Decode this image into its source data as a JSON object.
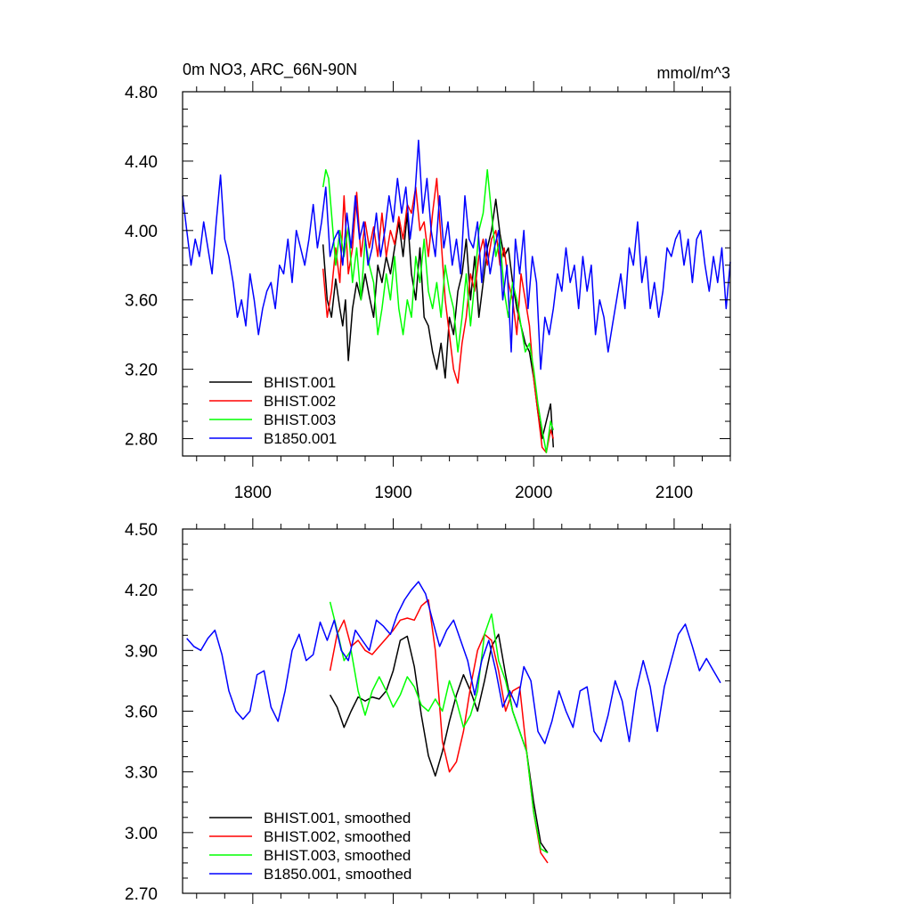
{
  "chart_data": [
    {
      "type": "line",
      "title_left": "0m NO3, ARC_66N-90N",
      "title_right": "mmol/m^3",
      "xlim": [
        1750,
        2140
      ],
      "ylim": [
        2.7,
        4.8
      ],
      "xticks": [
        1800,
        1900,
        2000,
        2100
      ],
      "xtick_labels": [
        "1800",
        "1900",
        "2000",
        "2100"
      ],
      "yticks": [
        2.8,
        3.2,
        3.6,
        4.0,
        4.4,
        4.8
      ],
      "ytick_labels": [
        "2.80",
        "3.20",
        "3.60",
        "4.00",
        "4.40",
        "4.80"
      ],
      "series": [
        {
          "name": "BHIST.001",
          "color": "#000000",
          "x": [
            1850,
            1853,
            1856,
            1859,
            1862,
            1864,
            1866,
            1868,
            1871,
            1874,
            1877,
            1880,
            1883,
            1886,
            1889,
            1892,
            1895,
            1898,
            1901,
            1904,
            1907,
            1910,
            1913,
            1916,
            1919,
            1922,
            1925,
            1928,
            1931,
            1934,
            1937,
            1940,
            1943,
            1946,
            1949,
            1952,
            1955,
            1958,
            1961,
            1964,
            1967,
            1970,
            1973,
            1976,
            1979,
            1982,
            1985,
            1988,
            1991,
            1994,
            1997,
            2000,
            2003,
            2006,
            2009,
            2012,
            2014
          ],
          "y": [
            3.92,
            3.6,
            3.5,
            3.72,
            3.55,
            3.45,
            3.6,
            3.25,
            3.55,
            3.7,
            3.6,
            3.75,
            3.62,
            3.5,
            3.8,
            3.7,
            3.85,
            3.75,
            3.9,
            4.05,
            3.85,
            4.1,
            3.75,
            3.6,
            3.9,
            3.5,
            3.45,
            3.3,
            3.2,
            3.35,
            3.15,
            3.5,
            3.4,
            3.65,
            3.75,
            3.95,
            3.6,
            3.85,
            3.5,
            3.7,
            3.9,
            4.0,
            4.18,
            3.98,
            3.85,
            3.9,
            3.7,
            3.55,
            3.45,
            3.35,
            3.3,
            3.15,
            2.95,
            2.8,
            2.9,
            3.0,
            2.75
          ]
        },
        {
          "name": "BHIST.002",
          "color": "#ff0000",
          "x": [
            1850,
            1853,
            1856,
            1859,
            1862,
            1865,
            1868,
            1871,
            1874,
            1877,
            1880,
            1883,
            1886,
            1889,
            1892,
            1895,
            1898,
            1901,
            1904,
            1907,
            1910,
            1913,
            1916,
            1919,
            1922,
            1925,
            1928,
            1931,
            1934,
            1937,
            1940,
            1943,
            1946,
            1949,
            1952,
            1955,
            1958,
            1961,
            1964,
            1967,
            1970,
            1973,
            1976,
            1979,
            1982,
            1985,
            1988,
            1991,
            1994,
            1997,
            2000,
            2003,
            2006,
            2009,
            2012,
            2014
          ],
          "y": [
            3.78,
            3.5,
            3.65,
            3.9,
            3.7,
            4.2,
            3.75,
            3.9,
            4.22,
            3.85,
            4.05,
            3.9,
            4.02,
            3.85,
            4.1,
            3.85,
            4.0,
            3.92,
            4.08,
            3.95,
            4.15,
            4.1,
            4.25,
            4.0,
            4.05,
            3.85,
            4.1,
            4.3,
            3.95,
            3.6,
            3.4,
            3.2,
            3.12,
            3.35,
            3.5,
            3.75,
            3.65,
            3.85,
            3.95,
            3.8,
            3.95,
            4.0,
            3.8,
            3.9,
            3.7,
            3.6,
            3.4,
            3.75,
            3.6,
            3.45,
            3.15,
            2.95,
            2.75,
            2.72,
            2.85,
            2.8
          ]
        },
        {
          "name": "BHIST.003",
          "color": "#00ff00",
          "x": [
            1850,
            1852,
            1854,
            1856,
            1859,
            1862,
            1865,
            1868,
            1871,
            1874,
            1877,
            1880,
            1883,
            1886,
            1889,
            1892,
            1895,
            1898,
            1901,
            1904,
            1907,
            1910,
            1913,
            1916,
            1919,
            1922,
            1925,
            1928,
            1931,
            1934,
            1937,
            1940,
            1943,
            1946,
            1949,
            1952,
            1955,
            1958,
            1961,
            1964,
            1967,
            1970,
            1973,
            1976,
            1979,
            1982,
            1985,
            1988,
            1991,
            1994,
            1997,
            2000,
            2003,
            2006,
            2009,
            2012,
            2014
          ],
          "y": [
            4.25,
            4.35,
            4.3,
            4.1,
            3.8,
            4.0,
            3.85,
            4.02,
            3.7,
            3.9,
            3.6,
            3.95,
            3.8,
            3.7,
            3.4,
            3.55,
            3.75,
            3.6,
            3.85,
            3.55,
            3.4,
            3.6,
            3.5,
            3.85,
            3.7,
            3.95,
            3.65,
            3.55,
            3.7,
            3.5,
            3.8,
            3.65,
            3.55,
            3.3,
            3.5,
            3.75,
            3.45,
            3.7,
            4.0,
            4.1,
            4.35,
            4.1,
            3.85,
            3.95,
            3.65,
            3.5,
            3.7,
            3.6,
            3.45,
            3.3,
            3.35,
            3.2,
            3.0,
            2.85,
            2.72,
            2.9,
            2.85
          ]
        },
        {
          "name": "B1850.001",
          "color": "#0000ff",
          "x": [
            1750,
            1753,
            1756,
            1759,
            1762,
            1765,
            1768,
            1771,
            1774,
            1777,
            1780,
            1783,
            1786,
            1789,
            1792,
            1795,
            1798,
            1801,
            1804,
            1807,
            1810,
            1813,
            1816,
            1819,
            1822,
            1825,
            1828,
            1831,
            1834,
            1837,
            1840,
            1843,
            1846,
            1849,
            1852,
            1855,
            1858,
            1861,
            1864,
            1867,
            1870,
            1873,
            1876,
            1879,
            1882,
            1885,
            1888,
            1891,
            1894,
            1897,
            1900,
            1903,
            1906,
            1909,
            1912,
            1915,
            1918,
            1921,
            1924,
            1927,
            1930,
            1933,
            1936,
            1939,
            1942,
            1945,
            1948,
            1951,
            1954,
            1957,
            1960,
            1963,
            1966,
            1969,
            1972,
            1975,
            1978,
            1981,
            1984,
            1987,
            1990,
            1993,
            1996,
            1999,
            2002,
            2005,
            2008,
            2011,
            2014,
            2017,
            2020,
            2023,
            2026,
            2029,
            2032,
            2035,
            2038,
            2041,
            2044,
            2047,
            2050,
            2053,
            2056,
            2059,
            2062,
            2065,
            2068,
            2071,
            2074,
            2077,
            2080,
            2083,
            2086,
            2089,
            2092,
            2095,
            2098,
            2101,
            2104,
            2107,
            2110,
            2113,
            2116,
            2119,
            2122,
            2125,
            2128,
            2131,
            2134,
            2137,
            2140
          ],
          "y": [
            4.2,
            4.0,
            3.8,
            3.95,
            3.85,
            4.05,
            3.9,
            3.75,
            4.05,
            4.32,
            3.95,
            3.85,
            3.7,
            3.5,
            3.6,
            3.45,
            3.75,
            3.6,
            3.4,
            3.55,
            3.65,
            3.7,
            3.55,
            3.8,
            3.75,
            3.95,
            3.7,
            4.0,
            3.9,
            3.8,
            3.95,
            4.15,
            3.9,
            4.05,
            4.25,
            3.85,
            3.95,
            4.0,
            3.8,
            4.1,
            3.9,
            4.2,
            3.95,
            4.05,
            3.8,
            3.9,
            4.1,
            3.85,
            4.0,
            4.2,
            4.05,
            4.3,
            4.1,
            4.25,
            3.95,
            4.15,
            4.52,
            4.1,
            4.3,
            4.0,
            3.85,
            4.2,
            3.9,
            4.05,
            3.8,
            3.95,
            3.75,
            4.2,
            3.95,
            3.9,
            4.05,
            3.7,
            3.95,
            3.75,
            3.9,
            4.0,
            3.6,
            3.8,
            3.3,
            3.95,
            3.75,
            4.0,
            3.55,
            3.85,
            3.7,
            3.2,
            3.5,
            3.4,
            3.55,
            3.75,
            3.65,
            3.9,
            3.7,
            3.8,
            3.55,
            3.85,
            3.65,
            3.8,
            3.4,
            3.6,
            3.5,
            3.3,
            3.45,
            3.6,
            3.75,
            3.55,
            3.9,
            3.8,
            4.05,
            3.7,
            3.85,
            3.55,
            3.7,
            3.5,
            3.65,
            3.9,
            3.85,
            3.95,
            4.0,
            3.8,
            3.95,
            3.7,
            3.95,
            4.0,
            3.8,
            3.65,
            3.85,
            3.7,
            3.9,
            3.55,
            3.82
          ]
        }
      ],
      "legend": {
        "position": "lower-left",
        "entries": [
          "BHIST.001",
          "BHIST.002",
          "BHIST.003",
          "B1850.001"
        ]
      }
    },
    {
      "type": "line",
      "xlim": [
        1750,
        2140
      ],
      "ylim": [
        2.7,
        4.5
      ],
      "xticks": [
        1800,
        1900,
        2000,
        2100
      ],
      "yticks": [
        2.7,
        3.0,
        3.3,
        3.6,
        3.9,
        4.2,
        4.5
      ],
      "ytick_labels": [
        "2.70",
        "3.00",
        "3.30",
        "3.60",
        "3.90",
        "4.20",
        "4.50"
      ],
      "series": [
        {
          "name": "BHIST.001, smoothed",
          "color": "#000000",
          "x": [
            1855,
            1860,
            1865,
            1870,
            1875,
            1880,
            1885,
            1890,
            1895,
            1900,
            1905,
            1910,
            1915,
            1920,
            1925,
            1930,
            1935,
            1940,
            1945,
            1950,
            1955,
            1960,
            1965,
            1970,
            1975,
            1980,
            1985,
            1990,
            1995,
            2000,
            2005,
            2010
          ],
          "y": [
            3.68,
            3.62,
            3.52,
            3.6,
            3.67,
            3.65,
            3.67,
            3.66,
            3.7,
            3.8,
            3.95,
            3.97,
            3.82,
            3.58,
            3.38,
            3.28,
            3.4,
            3.55,
            3.68,
            3.78,
            3.7,
            3.6,
            3.75,
            3.92,
            3.98,
            3.78,
            3.6,
            3.5,
            3.4,
            3.15,
            2.95,
            2.9
          ]
        },
        {
          "name": "BHIST.002, smoothed",
          "color": "#ff0000",
          "x": [
            1855,
            1860,
            1865,
            1870,
            1875,
            1880,
            1885,
            1890,
            1895,
            1900,
            1905,
            1910,
            1915,
            1920,
            1925,
            1930,
            1935,
            1940,
            1945,
            1950,
            1955,
            1960,
            1965,
            1970,
            1975,
            1980,
            1985,
            1990,
            1995,
            2000,
            2005,
            2010
          ],
          "y": [
            3.8,
            3.98,
            4.05,
            3.92,
            3.95,
            3.9,
            3.88,
            3.92,
            3.96,
            4.0,
            4.05,
            4.06,
            4.05,
            4.12,
            4.15,
            3.9,
            3.45,
            3.3,
            3.35,
            3.5,
            3.72,
            3.9,
            3.98,
            3.95,
            3.8,
            3.6,
            3.7,
            3.72,
            3.4,
            3.1,
            2.9,
            2.85
          ]
        },
        {
          "name": "BHIST.003, smoothed",
          "color": "#00ff00",
          "x": [
            1855,
            1860,
            1865,
            1870,
            1875,
            1880,
            1885,
            1890,
            1895,
            1900,
            1905,
            1910,
            1915,
            1920,
            1925,
            1930,
            1935,
            1940,
            1945,
            1950,
            1955,
            1960,
            1965,
            1970,
            1975,
            1980,
            1985,
            1990,
            1995,
            2000,
            2005,
            2010
          ],
          "y": [
            4.14,
            4.0,
            3.85,
            3.9,
            3.7,
            3.58,
            3.7,
            3.77,
            3.7,
            3.62,
            3.68,
            3.77,
            3.72,
            3.63,
            3.6,
            3.66,
            3.6,
            3.75,
            3.65,
            3.52,
            3.58,
            3.7,
            3.98,
            4.08,
            3.85,
            3.75,
            3.6,
            3.5,
            3.4,
            3.1,
            2.92,
            2.9
          ]
        },
        {
          "name": "B1850.001, smoothed",
          "color": "#0000ff",
          "x": [
            1753,
            1758,
            1763,
            1768,
            1773,
            1778,
            1783,
            1788,
            1793,
            1798,
            1803,
            1808,
            1813,
            1818,
            1823,
            1828,
            1833,
            1838,
            1843,
            1848,
            1853,
            1858,
            1863,
            1868,
            1873,
            1878,
            1883,
            1888,
            1893,
            1898,
            1903,
            1908,
            1913,
            1918,
            1923,
            1928,
            1933,
            1938,
            1943,
            1948,
            1953,
            1958,
            1963,
            1968,
            1973,
            1978,
            1983,
            1988,
            1993,
            1998,
            2003,
            2008,
            2013,
            2018,
            2023,
            2028,
            2033,
            2038,
            2043,
            2048,
            2053,
            2058,
            2063,
            2068,
            2073,
            2078,
            2083,
            2088,
            2093,
            2098,
            2103,
            2108,
            2113,
            2118,
            2123,
            2128,
            2133
          ],
          "y": [
            3.96,
            3.92,
            3.9,
            3.96,
            4.0,
            3.88,
            3.7,
            3.6,
            3.56,
            3.6,
            3.78,
            3.8,
            3.62,
            3.55,
            3.7,
            3.9,
            3.98,
            3.85,
            3.88,
            4.04,
            3.95,
            4.05,
            3.9,
            3.85,
            4.0,
            3.95,
            3.9,
            4.05,
            4.02,
            3.98,
            4.08,
            4.15,
            4.2,
            4.24,
            4.18,
            4.05,
            3.92,
            4.0,
            4.05,
            3.95,
            3.85,
            3.68,
            3.85,
            3.95,
            3.8,
            3.62,
            3.7,
            3.62,
            3.82,
            3.75,
            3.5,
            3.44,
            3.55,
            3.7,
            3.6,
            3.52,
            3.7,
            3.72,
            3.5,
            3.45,
            3.58,
            3.75,
            3.65,
            3.45,
            3.7,
            3.85,
            3.72,
            3.5,
            3.72,
            3.85,
            3.98,
            4.03,
            3.92,
            3.8,
            3.86,
            3.8,
            3.74
          ]
        }
      ],
      "legend": {
        "position": "lower-left",
        "entries": [
          "BHIST.001, smoothed",
          "BHIST.002, smoothed",
          "BHIST.003, smoothed",
          "B1850.001, smoothed"
        ]
      }
    }
  ]
}
